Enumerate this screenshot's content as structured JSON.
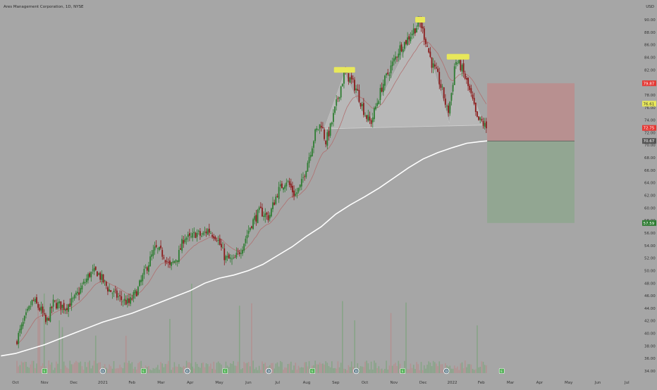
{
  "header": {
    "title": "Ares Management Corporation, 1D, NYSE",
    "currency": "USD"
  },
  "colors": {
    "background": "#a6a6a6",
    "up_candle": "#2e7d32",
    "down_candle": "#8b1a1a",
    "sma_long": "#ffffff",
    "ema_short": "#b07070",
    "stop_zone": "#b89090",
    "target_zone": "#92a692",
    "pattern_fill": "#bdbdbd",
    "highlight": "#e8e85a",
    "price_red": "#e53935",
    "price_green": "#2e7d32",
    "price_yellow": "#e8e85a",
    "price_dark": "#555555"
  },
  "chart_data": {
    "type": "candlestick",
    "symbol": "Ares Management Corporation",
    "interval": "1D",
    "exchange": "NYSE",
    "y_axis": {
      "min": 33,
      "max": 92,
      "ticks": [
        34,
        36,
        38,
        40,
        42,
        44,
        46,
        48,
        50,
        52,
        54,
        56,
        58,
        60,
        62,
        64,
        66,
        68,
        70,
        72,
        74,
        76,
        78,
        80,
        82,
        84,
        86,
        88,
        90
      ],
      "tick_labels": [
        "34.00",
        "36.00",
        "38.00",
        "40.00",
        "42.00",
        "44.00",
        "46.00",
        "48.00",
        "50.00",
        "52.00",
        "54.00",
        "56.00",
        "58.00",
        "60.00",
        "62.00",
        "64.00",
        "66.00",
        "68.00",
        "70.00",
        "72.00",
        "74.00",
        "76.00",
        "78.00",
        "80.00",
        "82.00",
        "84.00",
        "86.00",
        "88.00",
        "90.00"
      ]
    },
    "x_axis": {
      "labels": [
        {
          "label": "Oct",
          "month_index": 0
        },
        {
          "label": "Nov",
          "month_index": 1
        },
        {
          "label": "Dec",
          "month_index": 2
        },
        {
          "label": "2021",
          "month_index": 3
        },
        {
          "label": "Feb",
          "month_index": 4
        },
        {
          "label": "Mar",
          "month_index": 5
        },
        {
          "label": "Apr",
          "month_index": 6
        },
        {
          "label": "May",
          "month_index": 7
        },
        {
          "label": "Jun",
          "month_index": 8
        },
        {
          "label": "Jul",
          "month_index": 9
        },
        {
          "label": "Aug",
          "month_index": 10
        },
        {
          "label": "Sep",
          "month_index": 11
        },
        {
          "label": "Oct",
          "month_index": 12
        },
        {
          "label": "Nov",
          "month_index": 13
        },
        {
          "label": "Dec",
          "month_index": 14
        },
        {
          "label": "2022",
          "month_index": 15
        },
        {
          "label": "Feb",
          "month_index": 16
        },
        {
          "label": "Mar",
          "month_index": 17
        },
        {
          "label": "Apr",
          "month_index": 18
        },
        {
          "label": "May",
          "month_index": 19
        },
        {
          "label": "Jun",
          "month_index": 20
        },
        {
          "label": "Jul",
          "month_index": 21
        }
      ]
    },
    "price_path": [
      [
        0,
        38.5
      ],
      [
        0.3,
        42.0
      ],
      [
        0.6,
        45.3
      ],
      [
        0.9,
        43.5
      ],
      [
        1.05,
        41.5
      ],
      [
        1.3,
        44.8
      ],
      [
        1.7,
        44.2
      ],
      [
        2.0,
        45.3
      ],
      [
        2.3,
        47.5
      ],
      [
        2.55,
        49.5
      ],
      [
        2.8,
        49.8
      ],
      [
        3.2,
        47.0
      ],
      [
        3.6,
        45.5
      ],
      [
        3.9,
        44.8
      ],
      [
        4.2,
        47.0
      ],
      [
        4.5,
        50.5
      ],
      [
        4.8,
        53.5
      ],
      [
        5.1,
        52.5
      ],
      [
        5.3,
        50.5
      ],
      [
        5.6,
        52.5
      ],
      [
        5.8,
        55.5
      ],
      [
        6.0,
        55.0
      ],
      [
        6.2,
        56.0
      ],
      [
        6.4,
        55.5
      ],
      [
        6.6,
        56.5
      ],
      [
        6.9,
        55.5
      ],
      [
        7.2,
        52.0
      ],
      [
        7.5,
        51.5
      ],
      [
        7.8,
        54.0
      ],
      [
        8.1,
        57.5
      ],
      [
        8.4,
        59.5
      ],
      [
        8.7,
        58.5
      ],
      [
        9.0,
        62.5
      ],
      [
        9.3,
        64.5
      ],
      [
        9.6,
        62.0
      ],
      [
        9.8,
        63.5
      ],
      [
        10.1,
        68.5
      ],
      [
        10.3,
        72.0
      ],
      [
        10.5,
        73.5
      ],
      [
        10.65,
        70.5
      ],
      [
        10.8,
        72.5
      ],
      [
        11.1,
        78.0
      ],
      [
        11.3,
        81.5
      ],
      [
        11.5,
        80.5
      ],
      [
        11.7,
        79.0
      ],
      [
        12.0,
        75.0
      ],
      [
        12.2,
        73.5
      ],
      [
        12.4,
        76.5
      ],
      [
        12.6,
        79.5
      ],
      [
        12.9,
        82.5
      ],
      [
        13.2,
        85.5
      ],
      [
        13.4,
        86.5
      ],
      [
        13.7,
        88.5
      ],
      [
        13.9,
        89.5
      ],
      [
        14.1,
        86.5
      ],
      [
        14.3,
        83.0
      ],
      [
        14.5,
        81.0
      ],
      [
        14.7,
        78.0
      ],
      [
        14.85,
        75.0
      ],
      [
        15.0,
        79.0
      ],
      [
        15.1,
        83.5
      ],
      [
        15.3,
        82.5
      ],
      [
        15.5,
        80.0
      ],
      [
        15.7,
        77.0
      ],
      [
        15.85,
        74.0
      ],
      [
        16.0,
        73.8
      ],
      [
        16.2,
        72.5
      ]
    ],
    "series": [
      {
        "type": "sma",
        "period": 200
      },
      {
        "type": "ema",
        "period": 20
      }
    ],
    "pattern": {
      "type": "head-and-shoulders",
      "neckline": [
        [
          10.6,
          72.6
        ],
        [
          16.1,
          73.2
        ]
      ],
      "outline": [
        [
          10.6,
          72.6
        ],
        [
          11.3,
          81.5
        ],
        [
          12.1,
          73.4
        ],
        [
          13.9,
          89.6
        ],
        [
          14.9,
          73.5
        ],
        [
          15.2,
          84.0
        ],
        [
          16.1,
          73.2
        ]
      ],
      "highlights": [
        {
          "x": 11.3,
          "y": 82.0
        },
        {
          "x": 13.9,
          "y": 90.0
        },
        {
          "x": 15.2,
          "y": 84.1
        }
      ]
    },
    "position": {
      "type": "short",
      "entry": 70.67,
      "stop": 79.87,
      "target": 57.59,
      "x_start": 16.2,
      "x_end": 19.2
    },
    "price_labels": [
      {
        "label": "79.87",
        "price": 79.87,
        "style": "red"
      },
      {
        "label": "76.61",
        "price": 76.61,
        "style": "yellow"
      },
      {
        "label": "72.75",
        "price": 72.75,
        "style": "red"
      },
      {
        "label": "70.67",
        "price": 70.67,
        "style": "dark"
      },
      {
        "label": "57.59",
        "price": 57.59,
        "style": "green"
      }
    ],
    "events": [
      {
        "type": "E",
        "month_index": 1
      },
      {
        "type": "D",
        "month_index": 3
      },
      {
        "type": "E",
        "month_index": 4.4
      },
      {
        "type": "D",
        "month_index": 5.9
      },
      {
        "type": "E",
        "month_index": 7.2
      },
      {
        "type": "D",
        "month_index": 8.7
      },
      {
        "type": "E",
        "month_index": 10.2
      },
      {
        "type": "D",
        "month_index": 11.7
      },
      {
        "type": "E",
        "month_index": 13.3
      },
      {
        "type": "D",
        "month_index": 14.8
      },
      {
        "type": "E",
        "month_index": 16.7
      }
    ]
  }
}
